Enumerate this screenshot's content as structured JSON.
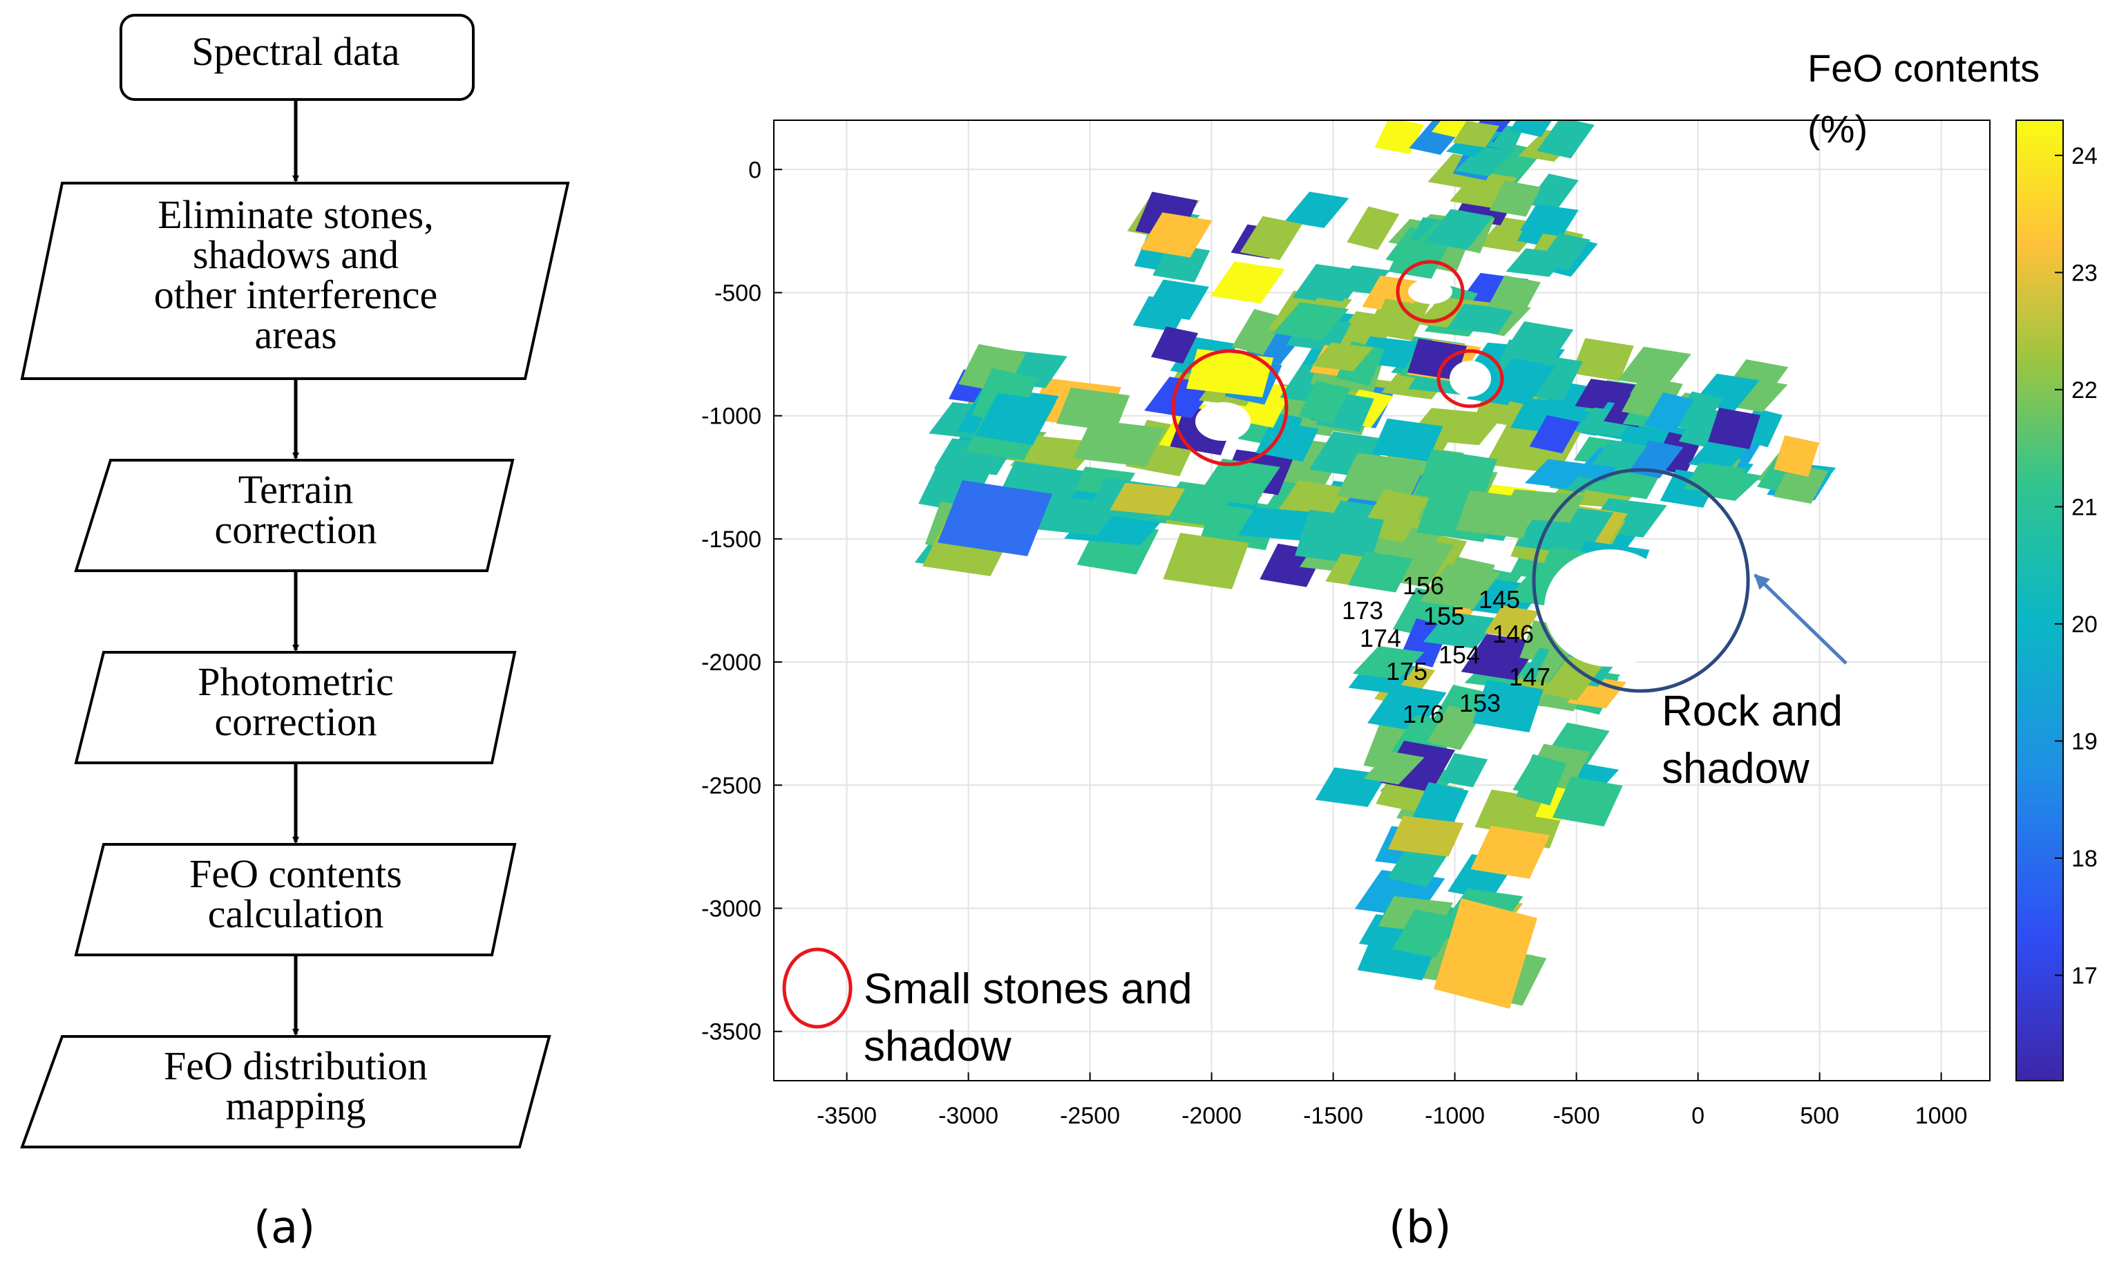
{
  "flowchart": {
    "steps": [
      {
        "lines": [
          "Spectral data"
        ]
      },
      {
        "lines": [
          "Eliminate stones,",
          "shadows and",
          "other interference",
          "areas"
        ]
      },
      {
        "lines": [
          "Terrain",
          "correction"
        ]
      },
      {
        "lines": [
          "Photometric",
          "correction"
        ]
      },
      {
        "lines": [
          "FeO contents",
          "calculation"
        ]
      },
      {
        "lines": [
          "FeO distribution",
          "mapping"
        ]
      }
    ]
  },
  "labels": {
    "a": "(a)",
    "b": "(b)"
  },
  "map": {
    "colorbar": {
      "title_line1": "FeO contents",
      "title_line2": "(%)",
      "ticks": [
        "24",
        "23",
        "22",
        "21",
        "20",
        "19",
        "18",
        "17"
      ],
      "range": [
        16.1,
        24.3
      ]
    },
    "x_ticks": [
      "-3500",
      "-3000",
      "-2500",
      "-2000",
      "-1500",
      "-1000",
      "-500",
      "0",
      "500",
      "1000"
    ],
    "y_ticks": [
      "0",
      "-500",
      "-1000",
      "-1500",
      "-2000",
      "-2500",
      "-3000",
      "-3500"
    ],
    "xlim": [
      -3800,
      1200
    ],
    "ylim": [
      -3700,
      200
    ],
    "point_labels": [
      "156",
      "145",
      "173",
      "155",
      "146",
      "174",
      "154",
      "147",
      "175",
      "153",
      "176"
    ],
    "annotations": {
      "small_line1": "Small stones and",
      "small_line2": "shadow",
      "rock_line1": "Rock and",
      "rock_line2": "shadow"
    },
    "colors": {
      "red_circle": "#e8161c",
      "blue_circle": "#2c4a80",
      "arrow": "#4f7ec2"
    }
  }
}
